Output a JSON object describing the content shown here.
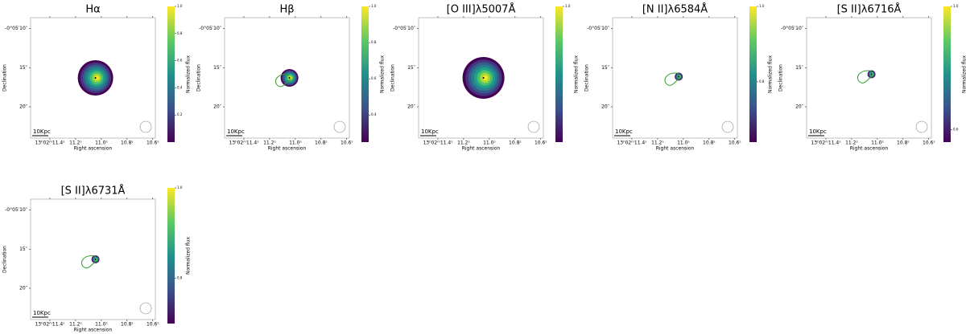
{
  "chart_data": [
    {
      "type": "image",
      "title": "Hα",
      "xlabel": "Right ascension",
      "ylabel": "Declination",
      "xlim": [
        11.55,
        10.58
      ],
      "xticks": [
        {
          "value": 11.4,
          "label": "13ʰ02ᵐ11.4ˢ"
        },
        {
          "value": 11.2,
          "label": "11.2ˢ"
        },
        {
          "value": 11.0,
          "label": "11.0ˢ"
        },
        {
          "value": 10.8,
          "label": "10.8ˢ"
        },
        {
          "value": 10.6,
          "label": "10.6ˢ"
        }
      ],
      "ylim": [
        8.6,
        24
      ],
      "yticks": [
        {
          "value": 10,
          "label": "-0°05′10″"
        },
        {
          "value": 15,
          "label": "15″"
        },
        {
          "value": 20,
          "label": "20″"
        }
      ],
      "colorbar": {
        "label": "Normalized flux",
        "lim": [
          0,
          1
        ],
        "ticks": [
          0.2,
          0.4,
          0.6,
          0.8,
          {
            "value": 1,
            "label": "1.0"
          }
        ]
      },
      "scalebar": "10Kpc"
    },
    {
      "type": "image",
      "title": "Hβ",
      "xlabel": "Right ascension",
      "ylabel": "Declination",
      "xlim": [
        11.55,
        10.58
      ],
      "xticks": [
        {
          "value": 11.4,
          "label": "13ʰ02ᵐ11.4ˢ"
        },
        {
          "value": 11.2,
          "label": "11.2ˢ"
        },
        {
          "value": 11.0,
          "label": "11.0ˢ"
        },
        {
          "value": 10.8,
          "label": "10.8ˢ"
        },
        {
          "value": 10.6,
          "label": "10.6ˢ"
        }
      ],
      "ylim": [
        8.6,
        24
      ],
      "yticks": [
        {
          "value": 10,
          "label": "-0°05′10″"
        },
        {
          "value": 15,
          "label": "15″"
        },
        {
          "value": 20,
          "label": "20″"
        }
      ],
      "colorbar": {
        "label": "Normalized flux",
        "lim": [
          0.25,
          1
        ],
        "ticks": [
          0.4,
          0.6,
          0.8,
          {
            "value": 1,
            "label": "1.0"
          }
        ]
      },
      "scalebar": "10Kpc"
    },
    {
      "type": "image",
      "title": "[O III]λ5007Å",
      "xlabel": "Right ascension",
      "ylabel": "Declination",
      "xlim": [
        11.55,
        10.58
      ],
      "xticks": [
        {
          "value": 11.4,
          "label": "13ʰ02ᵐ11.4ˢ"
        },
        {
          "value": 11.2,
          "label": "11.2ˢ"
        },
        {
          "value": 11.0,
          "label": "11.0ˢ"
        },
        {
          "value": 10.8,
          "label": "10.8ˢ"
        },
        {
          "value": 10.6,
          "label": "10.6ˢ"
        }
      ],
      "ylim": [
        8.6,
        24
      ],
      "yticks": [
        {
          "value": 10,
          "label": "-0°05′10″"
        },
        {
          "value": 15,
          "label": "15″"
        },
        {
          "value": 20,
          "label": "20″"
        }
      ],
      "colorbar": {
        "label": "Normalized flux",
        "lim": [
          0,
          1
        ],
        "ticks": [
          {
            "value": 1,
            "label": "1.0"
          }
        ]
      },
      "scalebar": "10Kpc"
    },
    {
      "type": "image",
      "title": "[N II]λ6584Å",
      "xlabel": "Right ascension",
      "ylabel": "Declination",
      "xlim": [
        11.55,
        10.58
      ],
      "xticks": [
        {
          "value": 11.4,
          "label": "13ʰ02ᵐ11.4ˢ"
        },
        {
          "value": 11.2,
          "label": "11.2ˢ"
        },
        {
          "value": 11.0,
          "label": "11.0ˢ"
        },
        {
          "value": 10.8,
          "label": "10.8ˢ"
        },
        {
          "value": 10.6,
          "label": "10.6ˢ"
        }
      ],
      "ylim": [
        8.6,
        24
      ],
      "yticks": [
        {
          "value": 10,
          "label": "-0°05′10″"
        },
        {
          "value": 15,
          "label": "15″"
        },
        {
          "value": 20,
          "label": "20″"
        }
      ],
      "colorbar": {
        "label": "Normalized flux",
        "lim": [
          0.64,
          1
        ],
        "ticks": [
          0.8,
          {
            "value": 1,
            "label": "1.0"
          }
        ]
      },
      "scalebar": "10Kpc"
    },
    {
      "type": "image",
      "title": "[S II]λ6716Å",
      "xlabel": "Right ascension",
      "ylabel": "Declination",
      "xlim": [
        11.55,
        10.58
      ],
      "xticks": [
        {
          "value": 11.4,
          "label": "13ʰ02ᵐ11.4ˢ"
        },
        {
          "value": 11.2,
          "label": "11.2ˢ"
        },
        {
          "value": 11.0,
          "label": "11.0ˢ"
        },
        {
          "value": 10.8,
          "label": "10.8ˢ"
        },
        {
          "value": 10.6,
          "label": "10.6ˢ"
        }
      ],
      "ylim": [
        8.6,
        24
      ],
      "yticks": [
        {
          "value": 10,
          "label": "-0°05′10″"
        },
        {
          "value": 15,
          "label": "15″"
        },
        {
          "value": 20,
          "label": "20″"
        }
      ],
      "colorbar": {
        "label": "Normalized flux",
        "lim": [
          0.56,
          1
        ],
        "ticks": [
          0.6,
          {
            "value": 1,
            "label": "1.0"
          }
        ]
      },
      "scalebar": "10Kpc"
    },
    {
      "type": "image",
      "title": "[S II]λ6731Å",
      "xlabel": "Right ascension",
      "ylabel": "Declination",
      "xlim": [
        11.55,
        10.58
      ],
      "xticks": [
        {
          "value": 11.4,
          "label": "13ʰ02ᵐ11.4ˢ"
        },
        {
          "value": 11.2,
          "label": "11.2ˢ"
        },
        {
          "value": 11.0,
          "label": "11.0ˢ"
        },
        {
          "value": 10.8,
          "label": "10.8ˢ"
        },
        {
          "value": 10.6,
          "label": "10.6ˢ"
        }
      ],
      "ylim": [
        8.6,
        24
      ],
      "yticks": [
        {
          "value": 10,
          "label": "-0°05′10″"
        },
        {
          "value": 15,
          "label": "15″"
        },
        {
          "value": 20,
          "label": "20″"
        }
      ],
      "colorbar": {
        "label": "Normalized flux",
        "lim": [
          0.7,
          1
        ],
        "ticks": [
          0.8,
          {
            "value": 1,
            "label": "1.0"
          }
        ]
      },
      "scalebar": "10Kpc"
    }
  ]
}
